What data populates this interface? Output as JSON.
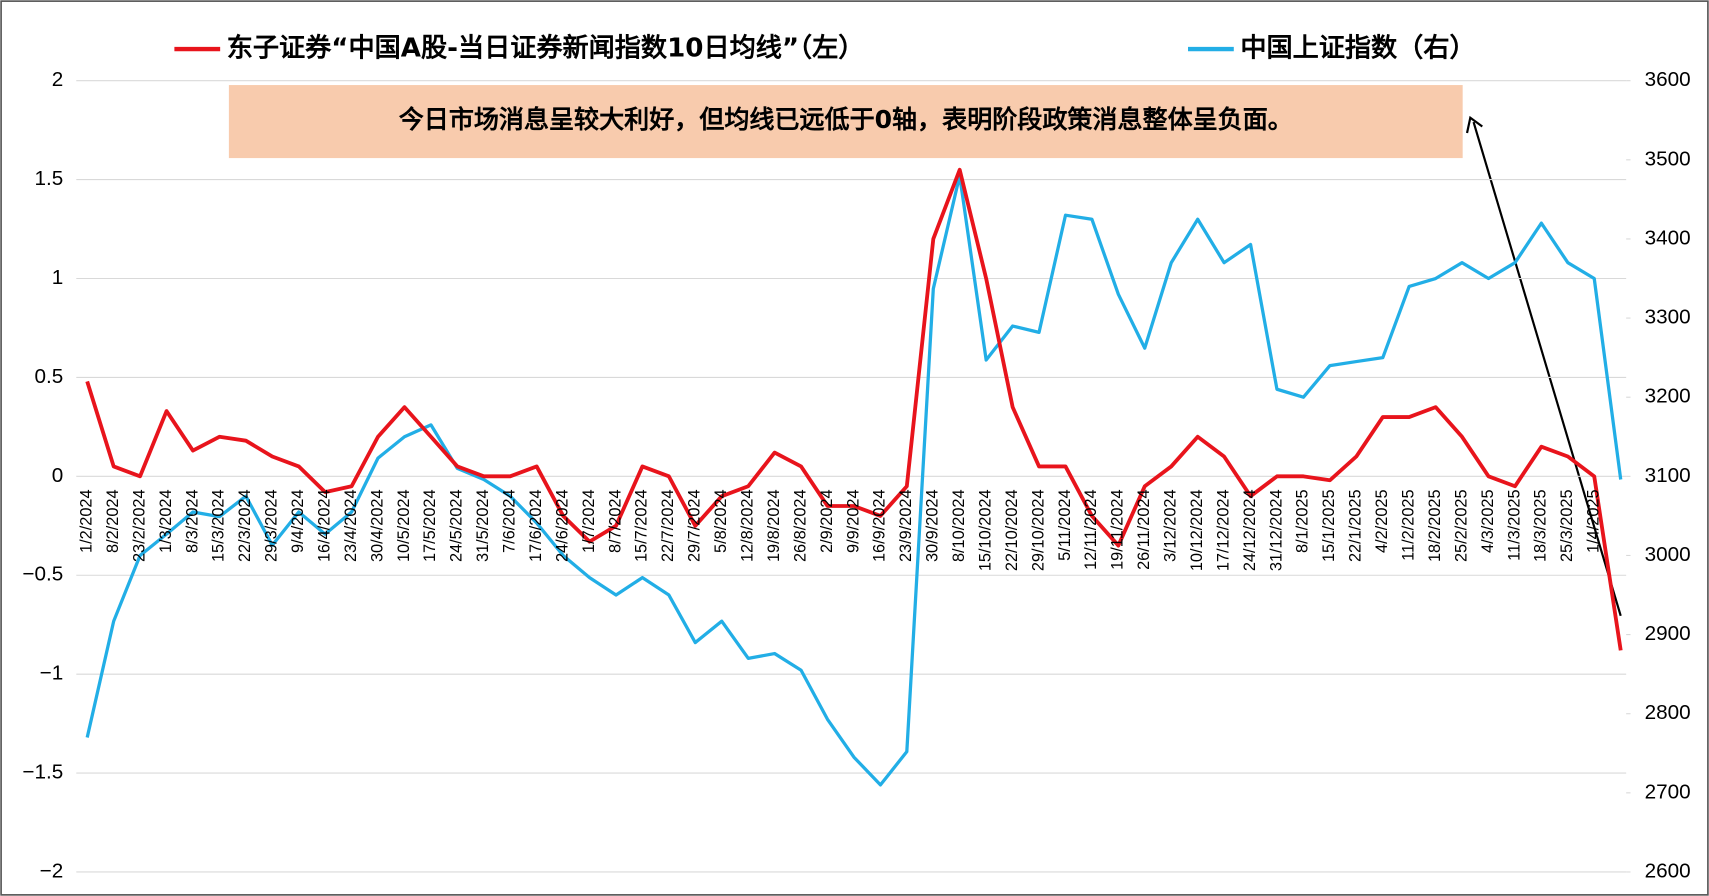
{
  "chart_data": {
    "type": "line",
    "categories": [
      "1/2/2024",
      "8/2/2024",
      "23/2/2024",
      "1/3/2024",
      "8/3/2024",
      "15/3/2024",
      "22/3/2024",
      "29/3/2024",
      "9/4/2024",
      "16/4/2024",
      "23/4/2024",
      "30/4/2024",
      "10/5/2024",
      "17/5/2024",
      "24/5/2024",
      "31/5/2024",
      "7/6/2024",
      "17/6/2024",
      "24/6/2024",
      "1/7/2024",
      "8/7/2024",
      "15/7/2024",
      "22/7/2024",
      "29/7/2024",
      "5/8/2024",
      "12/8/2024",
      "19/8/2024",
      "26/8/2024",
      "2/9/2024",
      "9/9/2024",
      "16/9/2024",
      "23/9/2024",
      "30/9/2024",
      "8/10/2024",
      "15/10/2024",
      "22/10/2024",
      "29/10/2024",
      "5/11/2024",
      "12/11/2024",
      "19/11/2024",
      "26/11/2024",
      "3/12/2024",
      "10/12/2024",
      "17/12/2024",
      "24/12/2024",
      "31/12/2024",
      "8/1/2025",
      "15/1/2025",
      "22/1/2025",
      "4/2/2025",
      "11/2/2025",
      "18/2/2025",
      "25/2/2025",
      "4/3/2025",
      "11/3/2025",
      "18/3/2025",
      "25/3/2025",
      "1/4/2025",
      null
    ],
    "series": [
      {
        "name": "东子证券“中国A股-当日证券新闻指数10日均线”（左）",
        "color": "#e8141c",
        "values": [
          0.48,
          0.05,
          0.0,
          0.33,
          0.13,
          0.2,
          0.18,
          0.1,
          0.05,
          -0.08,
          -0.05,
          0.2,
          0.35,
          0.2,
          0.05,
          0.0,
          0.0,
          0.05,
          -0.2,
          -0.33,
          -0.25,
          0.05,
          0.0,
          -0.25,
          -0.1,
          -0.05,
          0.12,
          0.05,
          -0.15,
          -0.15,
          -0.2,
          -0.05,
          1.2,
          1.55,
          1.0,
          0.35,
          0.05,
          0.05,
          -0.2,
          -0.35,
          -0.05,
          0.05,
          0.2,
          0.1,
          -0.1,
          0.0,
          0.0,
          -0.02,
          0.1,
          0.3,
          0.3,
          0.35,
          0.2,
          0.0,
          -0.05,
          0.15,
          0.1,
          0.0,
          -0.88
        ]
      },
      {
        "name": "中国上证指数（右）",
        "color": "#22aee6",
        "axis": "y2",
        "values": [
          2770,
          2917,
          3000,
          3027,
          3055,
          3049,
          3075,
          3013,
          3055,
          3027,
          3055,
          3123,
          3150,
          3165,
          3110,
          3096,
          3075,
          3041,
          3000,
          2972,
          2950,
          2972,
          2950,
          2890,
          2917,
          2870,
          2876,
          2855,
          2793,
          2745,
          2710,
          2752,
          3337,
          3480,
          3247,
          3290,
          3282,
          3430,
          3425,
          3330,
          3262,
          3370,
          3425,
          3370,
          3393,
          3210,
          3200,
          3240,
          3245,
          3250,
          3340,
          3350,
          3370,
          3350,
          3370,
          3420,
          3370,
          3350,
          3096
        ]
      }
    ],
    "ylim": [
      -2,
      2
    ],
    "yticks": [
      {
        "value": -2,
        "label": "−2"
      },
      {
        "value": -1.5,
        "label": "−1.5"
      },
      {
        "value": -1,
        "label": "−1"
      },
      {
        "value": -0.5,
        "label": "−0.5"
      },
      0,
      0.5,
      1,
      1.5,
      2
    ],
    "y2lim": [
      2600,
      3600
    ],
    "y2ticks": [
      2600,
      2700,
      2800,
      2900,
      3000,
      3100,
      3200,
      3300,
      3400,
      3500,
      3600
    ],
    "grid": true,
    "legend": "top",
    "annotation": "今日市场消息呈较大利好，但均线已远低于0轴，表明阶段政策消息整体呈负面。"
  }
}
